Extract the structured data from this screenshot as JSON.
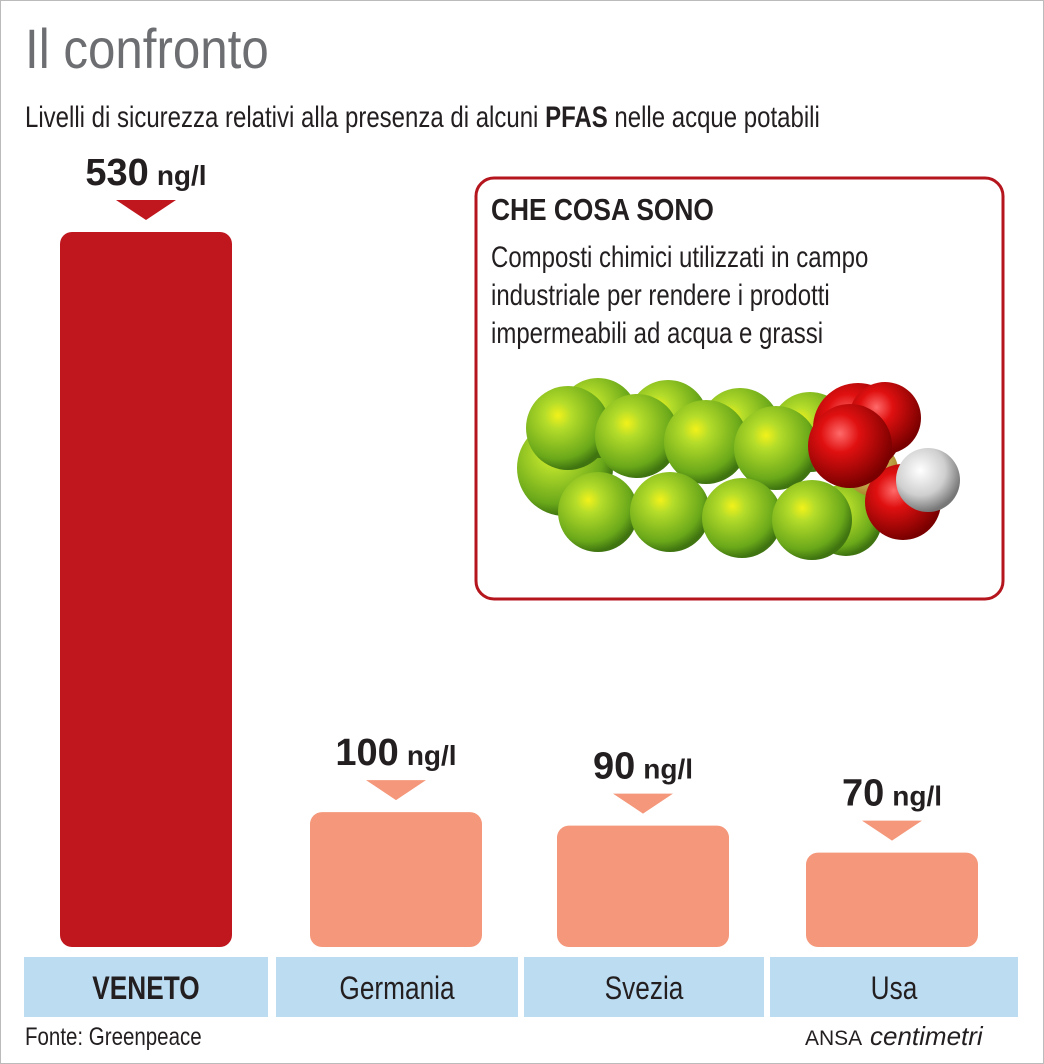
{
  "chart_data": {
    "type": "bar",
    "title": "Il confronto",
    "subtitle": [
      "Livelli di sicurezza relativi alla presenza di alcuni ",
      "PFAS",
      " nelle acque potabili"
    ],
    "categories": [
      "VENETO",
      "Germania",
      "Svezia",
      "Usa"
    ],
    "values": [
      530,
      100,
      90,
      70
    ],
    "unit": "ng/l",
    "colors": [
      "#c0161e",
      "#f4977a",
      "#f4977a",
      "#f4977a"
    ],
    "box": {
      "title": "CHE COSA SONO",
      "lines": [
        "Composti chimici utilizzati in campo",
        "industriale per rendere i prodotti",
        "impermeabili ad acqua e grassi"
      ]
    },
    "source": "Fonte: Greenpeace",
    "credit": [
      "ANSA",
      "centimetri"
    ]
  }
}
